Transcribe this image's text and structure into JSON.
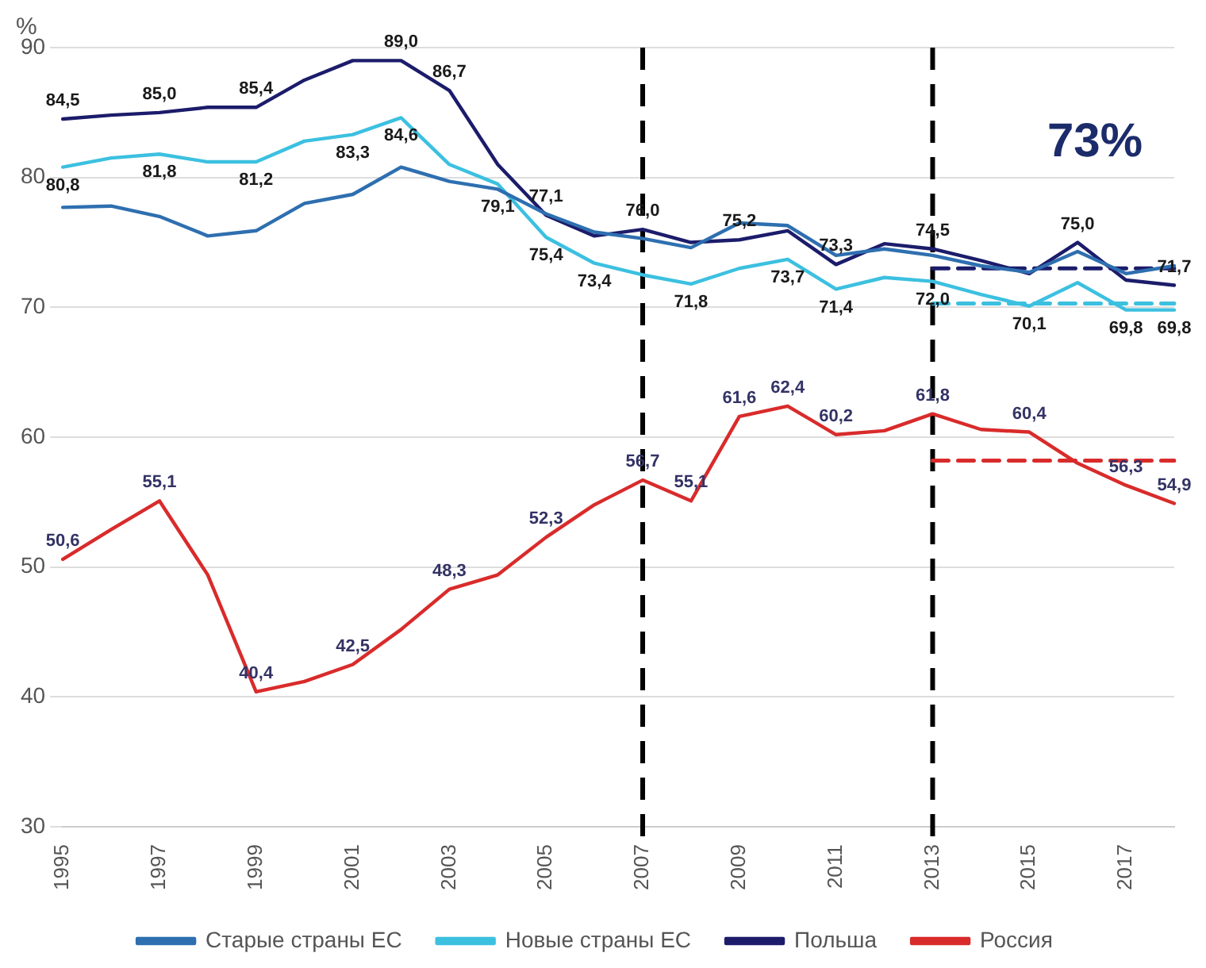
{
  "chart_data": {
    "type": "line",
    "ylabel": "%",
    "categories": [
      "1995",
      null,
      "1997",
      null,
      "1999",
      null,
      "2001",
      null,
      "2003",
      null,
      "2005",
      null,
      "2007",
      null,
      "2009",
      null,
      "2011",
      null,
      "2013",
      null,
      "2015",
      null,
      "2017",
      null
    ],
    "ylim": [
      30,
      90
    ],
    "yticks": [
      30,
      40,
      50,
      60,
      70,
      80,
      90
    ],
    "grid": "y",
    "legend": "bottom",
    "marker": "none",
    "line_style": "solid",
    "series": [
      {
        "name": "Старые страны ЕС",
        "color": "#2e6fb0",
        "values": [
          77.7,
          77.8,
          77.0,
          75.5,
          75.9,
          78.0,
          78.7,
          80.8,
          79.7,
          79.1,
          77.2,
          75.8,
          75.3,
          74.6,
          76.5,
          76.3,
          74.0,
          74.5,
          74.0,
          73.2,
          72.7,
          74.3,
          72.6,
          73.2
        ],
        "value_labels": [
          null,
          null,
          null,
          null,
          null,
          null,
          null,
          null,
          null,
          "79,1",
          null,
          null,
          null,
          null,
          null,
          null,
          null,
          null,
          null,
          null,
          null,
          null,
          null,
          null
        ]
      },
      {
        "name": "Новые страны ЕС",
        "color": "#3cc0e0",
        "values": [
          80.8,
          81.5,
          81.8,
          81.2,
          81.2,
          82.8,
          83.3,
          84.6,
          81.0,
          79.5,
          75.4,
          73.4,
          72.5,
          71.8,
          73.0,
          73.7,
          71.4,
          72.3,
          72.0,
          71.0,
          70.1,
          71.9,
          69.8,
          69.8
        ],
        "value_labels": [
          "80,8",
          null,
          "81,8",
          null,
          "81,2",
          null,
          "83,3",
          "84,6",
          null,
          null,
          "75,4",
          "73,4",
          null,
          "71,8",
          null,
          "73,7",
          "71,4",
          null,
          "72,0",
          null,
          "70,1",
          null,
          "69,8",
          "69,8"
        ]
      },
      {
        "name": "Польша",
        "color": "#1c1c6b",
        "values": [
          84.5,
          84.8,
          85.0,
          85.4,
          85.4,
          87.5,
          89.0,
          89.0,
          86.7,
          81.0,
          77.1,
          75.5,
          76.0,
          75.0,
          75.2,
          75.9,
          73.3,
          74.9,
          74.5,
          73.6,
          72.6,
          75.0,
          72.1,
          71.7
        ],
        "value_labels": [
          "84,5",
          null,
          "85,0",
          null,
          "85,4",
          null,
          null,
          "89,0",
          "86,7",
          null,
          "77,1",
          null,
          "76,0",
          null,
          "75,2",
          null,
          "73,3",
          null,
          "74,5",
          null,
          null,
          "75,0",
          null,
          "71,7"
        ]
      },
      {
        "name": "Россия",
        "color": "#d92b2b",
        "values": [
          50.6,
          52.9,
          55.1,
          49.4,
          40.4,
          41.2,
          42.5,
          45.2,
          48.3,
          49.4,
          52.3,
          54.8,
          56.7,
          55.1,
          61.6,
          62.4,
          60.2,
          60.5,
          61.8,
          60.6,
          60.4,
          58.0,
          56.3,
          54.9
        ],
        "value_labels": [
          "50,6",
          null,
          "55,1",
          null,
          "40,4",
          null,
          "42,5",
          null,
          "48,3",
          null,
          "52,3",
          null,
          "56,7",
          "55,1",
          "61,6",
          "62,4",
          "60,2",
          null,
          "61,8",
          null,
          "60,4",
          null,
          "56,3",
          "54,9"
        ]
      },
      {
        "color": "#1c1c6b",
        "line_style": "dashed",
        "values": [
          null,
          null,
          null,
          null,
          null,
          null,
          null,
          null,
          null,
          null,
          null,
          null,
          null,
          null,
          null,
          null,
          null,
          null,
          73.0,
          73.0,
          73.0,
          73.0,
          73.0,
          73.0
        ]
      },
      {
        "color": "#3cc0e0",
        "line_style": "dashed",
        "values": [
          null,
          null,
          null,
          null,
          null,
          null,
          null,
          null,
          null,
          null,
          null,
          null,
          null,
          null,
          null,
          null,
          null,
          null,
          70.3,
          70.3,
          70.3,
          70.3,
          70.3,
          70.3
        ]
      },
      {
        "color": "#d92b2b",
        "line_style": "dashed",
        "values": [
          null,
          null,
          null,
          null,
          null,
          null,
          null,
          null,
          null,
          null,
          null,
          null,
          null,
          null,
          null,
          null,
          null,
          null,
          58.2,
          58.2,
          58.2,
          58.2,
          58.2,
          58.2
        ]
      }
    ],
    "ref_lines": [
      {
        "axis": "x",
        "value": "2007",
        "color": "#000000",
        "line_style": "dashed"
      },
      {
        "axis": "x",
        "value": "2013",
        "color": "#000000",
        "line_style": "dashed"
      }
    ],
    "annotations": [
      "73%"
    ]
  }
}
